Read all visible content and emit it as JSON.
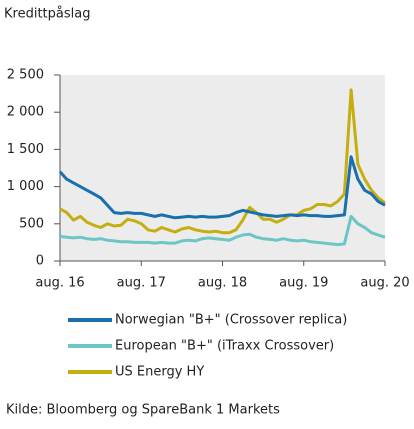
{
  "chart_data": {
    "type": "line",
    "title": "Kredittpåslag",
    "x": [
      "2016-08",
      "2016-09",
      "2016-10",
      "2016-11",
      "2016-12",
      "2017-01",
      "2017-02",
      "2017-03",
      "2017-04",
      "2017-05",
      "2017-06",
      "2017-07",
      "2017-08",
      "2017-09",
      "2017-10",
      "2017-11",
      "2017-12",
      "2018-01",
      "2018-02",
      "2018-03",
      "2018-04",
      "2018-05",
      "2018-06",
      "2018-07",
      "2018-08",
      "2018-09",
      "2018-10",
      "2018-11",
      "2018-12",
      "2019-01",
      "2019-02",
      "2019-03",
      "2019-04",
      "2019-05",
      "2019-06",
      "2019-07",
      "2019-08",
      "2019-09",
      "2019-10",
      "2019-11",
      "2019-12",
      "2020-01",
      "2020-02",
      "2020-03",
      "2020-04",
      "2020-05",
      "2020-06",
      "2020-07",
      "2020-08"
    ],
    "xlim": [
      "2016-08",
      "2020-08"
    ],
    "xticks": [
      {
        "value": "2016-08",
        "label": "aug. 16"
      },
      {
        "value": "2017-08",
        "label": "aug. 17"
      },
      {
        "value": "2018-08",
        "label": "aug. 18"
      },
      {
        "value": "2019-08",
        "label": "aug. 19"
      },
      {
        "value": "2020-08",
        "label": "aug. 20"
      }
    ],
    "ylim": [
      0,
      2500
    ],
    "yticks": [
      0,
      500,
      {
        "value": 1000,
        "label": "1 000"
      },
      {
        "value": 1500,
        "label": "1 500"
      },
      {
        "value": 2000,
        "label": "2 000"
      },
      {
        "value": 2500,
        "label": "2 500"
      }
    ],
    "series": [
      {
        "name": "Norwegian \"B+\" (Crossover replica)",
        "color": "#1a6fad",
        "values": [
          1200,
          1100,
          1050,
          1000,
          950,
          900,
          850,
          750,
          650,
          640,
          650,
          640,
          640,
          620,
          600,
          620,
          600,
          580,
          590,
          600,
          590,
          600,
          590,
          590,
          600,
          610,
          650,
          680,
          660,
          640,
          620,
          610,
          600,
          610,
          620,
          610,
          620,
          610,
          610,
          600,
          600,
          610,
          620,
          1400,
          1100,
          950,
          900,
          800,
          750
        ]
      },
      {
        "name": "European \"B+\" (iTraxx Crossover)",
        "color": "#6cc6c6",
        "values": [
          330,
          320,
          310,
          320,
          300,
          290,
          300,
          280,
          270,
          260,
          260,
          250,
          250,
          250,
          240,
          250,
          240,
          240,
          270,
          280,
          270,
          300,
          310,
          300,
          290,
          280,
          320,
          350,
          360,
          320,
          300,
          290,
          280,
          300,
          280,
          270,
          280,
          260,
          250,
          240,
          230,
          220,
          230,
          600,
          500,
          450,
          380,
          350,
          320
        ]
      },
      {
        "name": "US Energy HY",
        "color": "#c5ae10",
        "values": [
          700,
          650,
          550,
          600,
          520,
          480,
          450,
          500,
          470,
          480,
          560,
          540,
          500,
          420,
          400,
          450,
          420,
          390,
          430,
          450,
          420,
          400,
          390,
          400,
          380,
          380,
          420,
          550,
          720,
          650,
          560,
          560,
          520,
          560,
          620,
          620,
          680,
          700,
          760,
          760,
          740,
          800,
          900,
          2300,
          1300,
          1100,
          950,
          850,
          780
        ]
      }
    ],
    "source": "Kilde: Bloomberg og SpareBank 1 Markets"
  }
}
